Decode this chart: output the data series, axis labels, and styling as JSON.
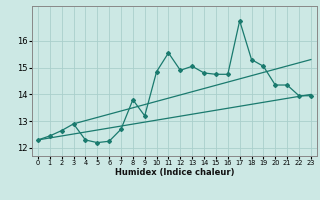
{
  "title": "",
  "xlabel": "Humidex (Indice chaleur)",
  "xlim": [
    -0.5,
    23.5
  ],
  "ylim": [
    11.7,
    17.3
  ],
  "background_color": "#cce8e4",
  "grid_color": "#aacfcc",
  "line_color": "#1a7a6e",
  "x_ticks": [
    0,
    1,
    2,
    3,
    4,
    5,
    6,
    7,
    8,
    9,
    10,
    11,
    12,
    13,
    14,
    15,
    16,
    17,
    18,
    19,
    20,
    21,
    22,
    23
  ],
  "y_ticks": [
    12,
    13,
    14,
    15,
    16
  ],
  "line1": [
    12.3,
    12.45,
    12.65,
    12.9,
    12.3,
    12.2,
    12.25,
    12.7,
    13.8,
    13.2,
    14.85,
    15.55,
    14.9,
    15.05,
    14.8,
    14.75,
    14.75,
    16.75,
    15.3,
    15.05,
    14.35,
    14.35,
    13.95,
    13.95
  ],
  "line2_x": [
    0,
    23
  ],
  "line2_y": [
    12.3,
    14.0
  ],
  "line3_x": [
    3,
    23
  ],
  "line3_y": [
    12.9,
    15.3
  ]
}
